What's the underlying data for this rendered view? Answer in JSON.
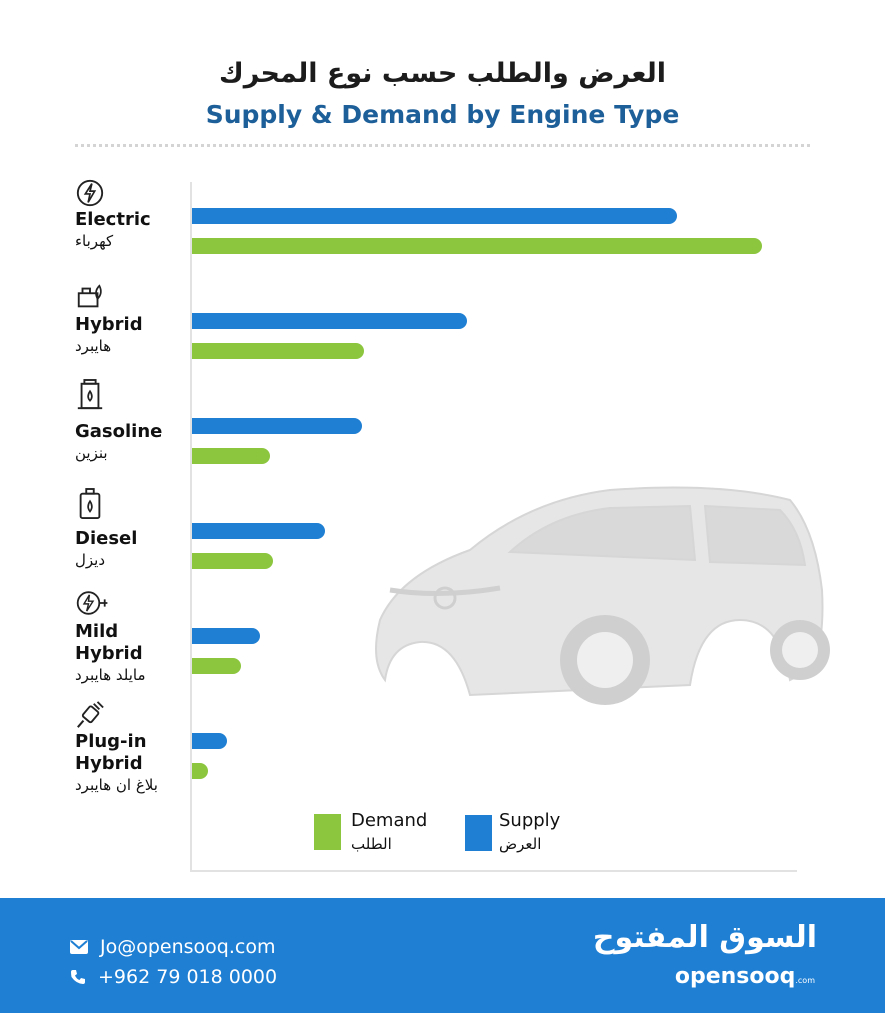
{
  "title_ar": "العرض والطلب حسب نوع المحرك",
  "title_en": "Supply & Demand by Engine Type",
  "categories": [
    {
      "en": "Electric",
      "ar": "كهرباء",
      "icon": "electric-bolt-icon"
    },
    {
      "en": "Hybrid",
      "ar": "هايبرد",
      "icon": "hybrid-engine-icon"
    },
    {
      "en": "Gasoline",
      "ar": "بنزين",
      "icon": "gas-pump-icon"
    },
    {
      "en": "Diesel",
      "ar": "ديزل",
      "icon": "diesel-canister-icon"
    },
    {
      "en": "Mild\nHybrid",
      "ar": "مايلد هايبرد",
      "icon": "mild-hybrid-plug-icon"
    },
    {
      "en": "Plug-in\nHybrid",
      "ar": "بلاغ ان هايبرد",
      "icon": "plug-icon"
    }
  ],
  "legend": {
    "demand": {
      "en": "Demand",
      "ar": "الطلب"
    },
    "supply": {
      "en": "Supply",
      "ar": "العرض"
    }
  },
  "colors": {
    "supply": "#1f7fd3",
    "demand": "#8cc63f",
    "title_en": "#1d5f99",
    "footer": "#1f7fd3"
  },
  "chart_data": {
    "type": "bar",
    "orientation": "horizontal",
    "categories": [
      "Electric",
      "Hybrid",
      "Gasoline",
      "Diesel",
      "Mild Hybrid",
      "Plug-in Hybrid"
    ],
    "series": [
      {
        "name": "Supply",
        "values": [
          485,
          275,
          170,
          133,
          68,
          35
        ]
      },
      {
        "name": "Demand",
        "values": [
          570,
          172,
          78,
          81,
          49,
          16
        ]
      }
    ],
    "xlim": [
      0,
      605
    ],
    "axis_ticks": "none",
    "legend_position": "bottom-right"
  },
  "footer": {
    "email": "Jo@opensooq.com",
    "phone": "+962 79 018 0000",
    "brand_ar": "السوق المفتوح",
    "brand_en": "opensooq",
    "brand_suffix": ".com"
  }
}
